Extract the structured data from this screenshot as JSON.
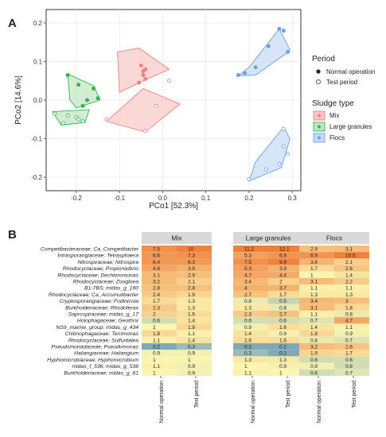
{
  "chart_data": [
    {
      "type": "scatter",
      "panel_label": "A",
      "xlabel": "PCo1 [52.3%]",
      "ylabel": "PCo2 [14.6%]",
      "xlim": [
        -0.27,
        0.32
      ],
      "ylim": [
        -0.235,
        0.235
      ],
      "x_ticks": [
        -0.2,
        -0.1,
        0.0,
        0.1,
        0.2,
        0.3
      ],
      "x_tick_labels": [
        "-0.2",
        "-0.1",
        "0.0",
        "0.1",
        "0.2",
        "0.3"
      ],
      "y_ticks": [
        -0.2,
        -0.1,
        0.0,
        0.1,
        0.2
      ],
      "y_tick_labels": [
        "-0.2",
        "-0.1",
        "0.0",
        "0.1",
        "0.2"
      ],
      "legend": {
        "period_title": "Period",
        "period_items": [
          "Normal operation",
          "Test period"
        ],
        "sludge_title": "Sludge type",
        "sludge_items": [
          {
            "label": "Mix",
            "color": "#f08080",
            "fill": "#f7c7c4"
          },
          {
            "label": "Large granules",
            "color": "#2eb84a",
            "fill": "#bfe6c0"
          },
          {
            "label": "Flocs",
            "color": "#6fa0e0",
            "fill": "#c6daf5"
          }
        ]
      },
      "series": [
        {
          "sludge": "Mix",
          "period": "Normal operation",
          "points": [
            [
              -0.05,
              0.09
            ],
            [
              -0.045,
              0.075
            ],
            [
              -0.04,
              0.08
            ],
            [
              -0.045,
              0.065
            ],
            [
              -0.04,
              0.055
            ],
            [
              -0.055,
              0.045
            ]
          ]
        },
        {
          "sludge": "Mix",
          "period": "Test period",
          "points": [
            [
              -0.015,
              -0.015
            ],
            [
              -0.13,
              -0.05
            ],
            [
              -0.04,
              -0.08
            ],
            [
              0.015,
              0.05
            ]
          ]
        },
        {
          "sludge": "Mix",
          "hull": [
            [
              -0.105,
              0.125
            ],
            [
              -0.055,
              0.135
            ],
            [
              0.015,
              0.08
            ],
            [
              -0.055,
              0.045
            ],
            [
              -0.1,
              0.02
            ]
          ]
        },
        {
          "sludge": "Mix",
          "hull": [
            [
              -0.045,
              0.03
            ],
            [
              0.04,
              -0.01
            ],
            [
              -0.04,
              -0.083
            ],
            [
              -0.13,
              -0.055
            ]
          ]
        },
        {
          "sludge": "Large granules",
          "period": "Normal operation",
          "points": [
            [
              -0.22,
              0.065
            ],
            [
              -0.195,
              0.04
            ],
            [
              -0.16,
              0.03
            ],
            [
              -0.15,
              0.005
            ],
            [
              -0.175,
              0.0
            ],
            [
              -0.185,
              -0.015
            ]
          ]
        },
        {
          "sludge": "Large granules",
          "period": "Test period",
          "points": [
            [
              -0.25,
              -0.035
            ],
            [
              -0.22,
              -0.04
            ],
            [
              -0.2,
              -0.045
            ],
            [
              -0.195,
              -0.05
            ],
            [
              -0.185,
              -0.055
            ],
            [
              -0.23,
              -0.06
            ]
          ]
        },
        {
          "sludge": "Large granules",
          "hull": [
            [
              -0.22,
              0.068
            ],
            [
              -0.16,
              0.037
            ],
            [
              -0.145,
              0.0
            ],
            [
              -0.2,
              -0.02
            ],
            [
              -0.215,
              0.0
            ]
          ]
        },
        {
          "sludge": "Large granules",
          "hull": [
            [
              -0.255,
              -0.03
            ],
            [
              -0.17,
              -0.025
            ],
            [
              -0.18,
              -0.058
            ],
            [
              -0.235,
              -0.065
            ]
          ]
        },
        {
          "sludge": "Flocs",
          "period": "Normal operation",
          "points": [
            [
              0.175,
              0.065
            ],
            [
              0.19,
              0.07
            ],
            [
              0.215,
              0.085
            ],
            [
              0.245,
              0.14
            ],
            [
              0.27,
              0.185
            ],
            [
              0.28,
              0.18
            ],
            [
              0.29,
              0.125
            ]
          ]
        },
        {
          "sludge": "Flocs",
          "period": "Test period",
          "points": [
            [
              0.28,
              -0.12
            ],
            [
              0.29,
              -0.14
            ],
            [
              0.27,
              -0.165
            ],
            [
              0.24,
              -0.18
            ],
            [
              0.2,
              -0.205
            ],
            [
              0.28,
              -0.075
            ]
          ]
        },
        {
          "sludge": "Flocs",
          "hull": [
            [
              0.2,
              0.085
            ],
            [
              0.27,
              0.185
            ],
            [
              0.295,
              0.13
            ],
            [
              0.285,
              0.12
            ],
            [
              0.215,
              0.065
            ],
            [
              0.175,
              0.063
            ]
          ]
        },
        {
          "sludge": "Flocs",
          "hull": [
            [
              0.28,
              -0.07
            ],
            [
              0.295,
              -0.1
            ],
            [
              0.275,
              -0.175
            ],
            [
              0.2,
              -0.21
            ],
            [
              0.215,
              -0.16
            ]
          ]
        }
      ]
    },
    {
      "type": "heatmap",
      "panel_label": "B",
      "facets": [
        "Mix",
        "Large granules",
        "Flocs"
      ],
      "columns": [
        "Normal operation",
        "Test period"
      ],
      "rows": [
        "Competibacteraceae; Ca_Competibacter",
        "Intrasporangiaceae; Tetrasphaera",
        "Nitrospiraceae; Nitrospira",
        "Rhodocyclaceae; Propionivibrio",
        "Rhodocyclaceae; Dechloromonas",
        "Rhodocyclaceae; Zoogloea",
        "B1-7BS; midas_g_190",
        "Rhodocyclaceae; Ca_Accumulibacter",
        "Cryptosporangiaceae; Fodinicola",
        "Burkholderiaceae; Rhodoferax",
        "Saprospiraceae; midas_g_17",
        "Holophagaceae; Geothrix",
        "NS9_marine_group; midas_g_434",
        "Chitinophagaceae; Terrimonas",
        "Rhodocyclaceae; Sulfuritalea",
        "Pseudomonadaceae; Pseudomonas",
        "Haliangiaceae; Haliangium",
        "Hyphomicrobiaceae; Hyphomicrobium",
        "midas_f_536; midas_g_536",
        "Burkholderiaceae; midas_g_81"
      ],
      "values": [
        [
          [
            7.5,
            10.0
          ],
          [
            11.2,
            12.1
          ],
          [
            2.9,
            3.1
          ]
        ],
        [
          [
            6.6,
            7.3
          ],
          [
            5.3,
            6.8
          ],
          [
            6.9,
            10.5
          ]
        ],
        [
          [
            6.4,
            6.3
          ],
          [
            7.5,
            9.9
          ],
          [
            3.6,
            2.1
          ]
        ],
        [
          [
            4.8,
            3.8
          ],
          [
            5.3,
            3.9
          ],
          [
            1.7,
            2.6
          ]
        ],
        [
          [
            3.1,
            2.9
          ],
          [
            4.7,
            4.4
          ],
          [
            1.0,
            1.4
          ]
        ],
        [
          [
            3.2,
            2.1
          ],
          [
            3.4,
            2.0
          ],
          [
            3.1,
            2.2
          ]
        ],
        [
          [
            2.8,
            2.8
          ],
          [
            4.0,
            3.7
          ],
          [
            1.1,
            1.1
          ]
        ],
        [
          [
            2.4,
            1.9
          ],
          [
            2.7,
            1.7
          ],
          [
            1.3,
            1.3
          ]
        ],
        [
          [
            1.7,
            1.3
          ],
          [
            0.8,
            0.5
          ],
          [
            3.4,
            3.0
          ]
        ],
        [
          [
            2.3,
            1.3
          ],
          [
            1.3,
            0.8
          ],
          [
            3.1,
            1.8
          ]
        ],
        [
          [
            2.0,
            1.6
          ],
          [
            2.3,
            2.7
          ],
          [
            1.1,
            0.8
          ]
        ],
        [
          [
            0.6,
            1.4
          ],
          [
            0.6,
            0.6
          ],
          [
            0.7,
            4.7
          ]
        ],
        [
          [
            1.0,
            1.8
          ],
          [
            0.9,
            1.6
          ],
          [
            1.4,
            1.1
          ]
        ],
        [
          [
            1.8,
            1.1
          ],
          [
            1.4,
            0.9
          ],
          [
            1.8,
            0.9
          ]
        ],
        [
          [
            1.1,
            1.4
          ],
          [
            1.6,
            1.6
          ],
          [
            0.8,
            0.7
          ]
        ],
        [
          [
            0.2,
            0.3
          ],
          [
            0.2,
            0.2
          ],
          [
            3.2,
            2.6
          ]
        ],
        [
          [
            0.9,
            0.9
          ],
          [
            0.3,
            0.2
          ],
          [
            1.9,
            1.7
          ]
        ],
        [
          [
            1.0,
            1.0
          ],
          [
            1.3,
            1.3
          ],
          [
            0.6,
            0.6
          ]
        ],
        [
          [
            1.1,
            0.9
          ],
          [
            1.0,
            0.9
          ],
          [
            0.9,
            0.6
          ]
        ],
        [
          [
            1.0,
            0.9
          ],
          [
            1.1,
            1.0
          ],
          [
            0.6,
            0.7
          ]
        ]
      ],
      "value_labels": [
        [
          [
            "7.5",
            "10"
          ],
          [
            "11.2",
            "12.1"
          ],
          [
            "2.9",
            "3.1"
          ]
        ],
        [
          [
            "6.6",
            "7.3"
          ],
          [
            "5.3",
            "6.8"
          ],
          [
            "6.9",
            "10.5"
          ]
        ],
        [
          [
            "6.4",
            "6.3"
          ],
          [
            "7.5",
            "9.9"
          ],
          [
            "3.6",
            "2.1"
          ]
        ],
        [
          [
            "4.8",
            "3.8"
          ],
          [
            "5.3",
            "3.9"
          ],
          [
            "1.7",
            "2.6"
          ]
        ],
        [
          [
            "3.1",
            "2.9"
          ],
          [
            "4.7",
            "4.4"
          ],
          [
            "1",
            "1.4"
          ]
        ],
        [
          [
            "3.2",
            "2.1"
          ],
          [
            "3.4",
            "2"
          ],
          [
            "3.1",
            "2.2"
          ]
        ],
        [
          [
            "2.8",
            "2.8"
          ],
          [
            "4",
            "3.7"
          ],
          [
            "1.1",
            "1.1"
          ]
        ],
        [
          [
            "2.4",
            "1.9"
          ],
          [
            "2.7",
            "1.7"
          ],
          [
            "1.3",
            "1.3"
          ]
        ],
        [
          [
            "1.7",
            "1.3"
          ],
          [
            "0.8",
            "0.5"
          ],
          [
            "3.4",
            "3"
          ]
        ],
        [
          [
            "2.3",
            "1.3"
          ],
          [
            "1.3",
            "0.8"
          ],
          [
            "3.1",
            "1.8"
          ]
        ],
        [
          [
            "2",
            "1.6"
          ],
          [
            "2.3",
            "2.7"
          ],
          [
            "1.1",
            "0.8"
          ]
        ],
        [
          [
            "0.6",
            "1.4"
          ],
          [
            "0.6",
            "0.6"
          ],
          [
            "0.7",
            "4.7"
          ]
        ],
        [
          [
            "1",
            "1.8"
          ],
          [
            "0.9",
            "1.6"
          ],
          [
            "1.4",
            "1.1"
          ]
        ],
        [
          [
            "1.8",
            "1.1"
          ],
          [
            "1.4",
            "0.9"
          ],
          [
            "1.8",
            "0.9"
          ]
        ],
        [
          [
            "1.1",
            "1.4"
          ],
          [
            "1.6",
            "1.6"
          ],
          [
            "0.8",
            "0.7"
          ]
        ],
        [
          [
            "0.2",
            "0.3"
          ],
          [
            "0.2",
            "0.2"
          ],
          [
            "3.2",
            "2.6"
          ]
        ],
        [
          [
            "0.9",
            "0.9"
          ],
          [
            "0.3",
            "0.2"
          ],
          [
            "1.9",
            "1.7"
          ]
        ],
        [
          [
            "1",
            "1"
          ],
          [
            "1.3",
            "1.3"
          ],
          [
            "0.6",
            "0.6"
          ]
        ],
        [
          [
            "1.1",
            "0.9"
          ],
          [
            "1",
            "0.9"
          ],
          [
            "0.9",
            "0.6"
          ]
        ],
        [
          [
            "1",
            "0.9"
          ],
          [
            "1.1",
            "1"
          ],
          [
            "0.6",
            "0.7"
          ]
        ]
      ],
      "color_scale": {
        "low": "#7aa6b8",
        "mid": "#fbf5b0",
        "high": "#f07f3c"
      }
    }
  ]
}
